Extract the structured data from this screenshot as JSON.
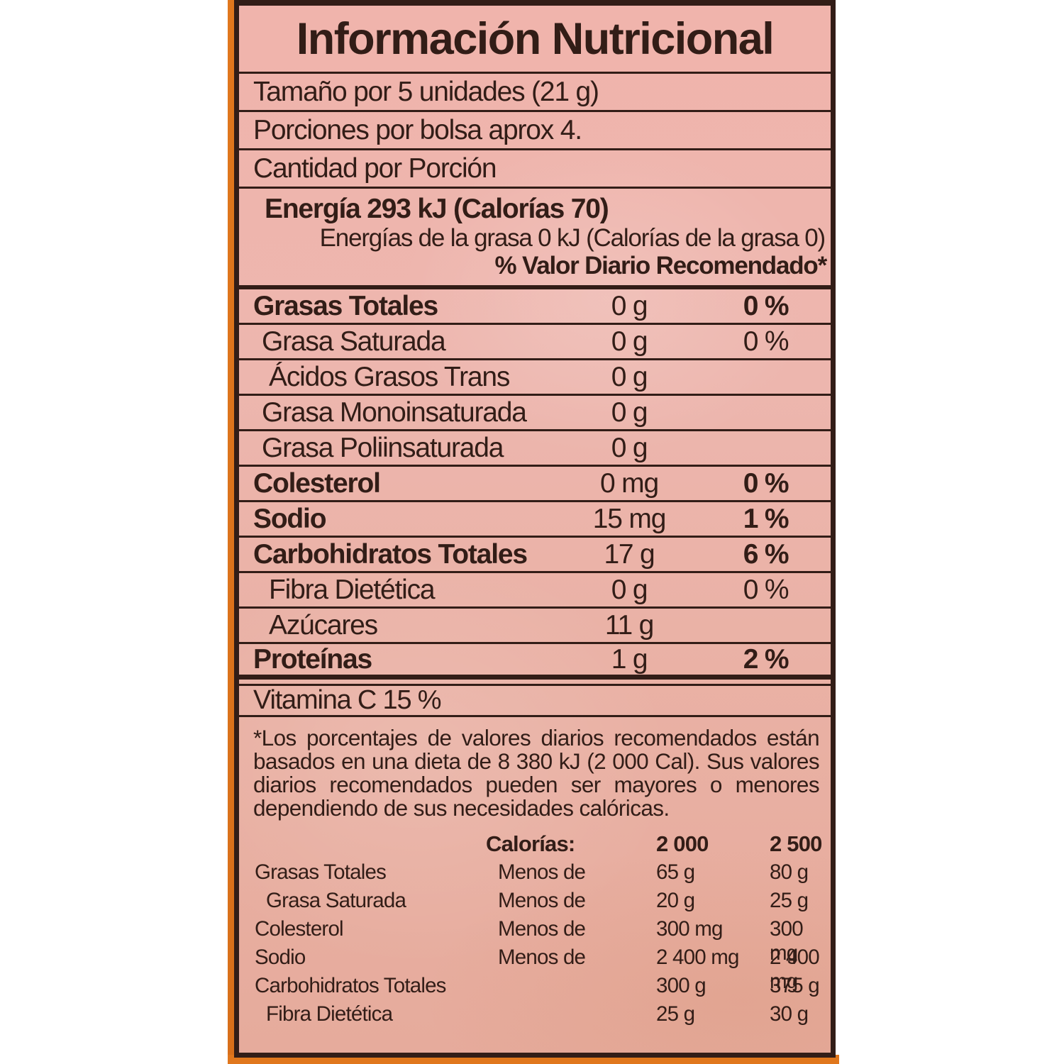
{
  "colors": {
    "ink": "#321d17",
    "label_bg": "#edb6ae",
    "orange": "#e0771d",
    "page": "#ffffff"
  },
  "title": "Información Nutricional",
  "serving": {
    "size": "Tamaño por 5 unidades (21 g)",
    "per_bag": "Porciones por bolsa aprox 4.",
    "amount_per": "Cantidad por Porción"
  },
  "energy": {
    "main": "Energía 293 kJ (Calorías 70)",
    "fat": "Energías de la grasa 0 kJ (Calorías de la grasa 0)",
    "dv_header": "% Valor Diario Recomendado*"
  },
  "nutrients": [
    {
      "name": "Grasas Totales",
      "amount": "0 g",
      "dv": "0 %"
    },
    {
      "name": "Grasa Saturada",
      "amount": "0 g",
      "dv": "0 %"
    },
    {
      "name": "Ácidos Grasos Trans",
      "amount": "0 g",
      "dv": ""
    },
    {
      "name": "Grasa Monoinsaturada",
      "amount": "0 g",
      "dv": ""
    },
    {
      "name": "Grasa Poliinsaturada",
      "amount": "0 g",
      "dv": ""
    },
    {
      "name": "Colesterol",
      "amount": "0 mg",
      "dv": "0 %"
    },
    {
      "name": "Sodio",
      "amount": "15 mg",
      "dv": "1 %"
    },
    {
      "name": "Carbohidratos Totales",
      "amount": "17 g",
      "dv": "6 %"
    },
    {
      "name": "Fibra Dietética",
      "amount": "0 g",
      "dv": "0 %"
    },
    {
      "name": "Azúcares",
      "amount": "11 g",
      "dv": ""
    },
    {
      "name": "Proteínas",
      "amount": "1 g",
      "dv": "2 %"
    }
  ],
  "vitamin_row": "Vitamina C 15 %",
  "footnote": "*Los porcentajes de valores diarios recomendados están basados en una dieta de 8 380 kJ (2 000 Cal). Sus valores diarios recomendados pueden ser mayores o menores dependiendo de sus necesidades calóricas.",
  "daily_values": {
    "header": {
      "label": "Calorías:",
      "col_2000": "2 000",
      "col_2500": "2 500"
    },
    "rows": [
      {
        "name": "Grasas Totales",
        "qualifier": "Menos de",
        "v2000": "65 g",
        "v2500": "80 g"
      },
      {
        "name": "Grasa Saturada",
        "qualifier": "Menos de",
        "v2000": "20 g",
        "v2500": "25 g"
      },
      {
        "name": "Colesterol",
        "qualifier": "Menos de",
        "v2000": "300 mg",
        "v2500": "300 mg"
      },
      {
        "name": "Sodio",
        "qualifier": "Menos de",
        "v2000": "2 400 mg",
        "v2500": "2 400 mg"
      },
      {
        "name": "Carbohidratos Totales",
        "qualifier": "",
        "v2000": "300 g",
        "v2500": "375 g"
      },
      {
        "name": "Fibra Dietética",
        "qualifier": "",
        "v2000": "25 g",
        "v2500": "30 g"
      }
    ]
  }
}
